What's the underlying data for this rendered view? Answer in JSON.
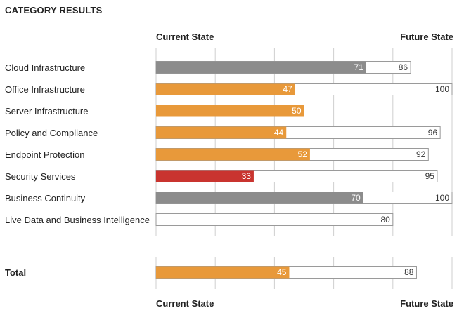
{
  "title": "CATEGORY RESULTS",
  "header": {
    "current": "Current State",
    "future": "Future State"
  },
  "footer": {
    "current": "Current State",
    "future": "Future State"
  },
  "chart_data": {
    "type": "bar",
    "xlim": [
      0,
      100
    ],
    "categories": [
      "Cloud Infrastructure",
      "Office Infrastructure",
      "Server Infrastructure",
      "Policy and Compliance",
      "Endpoint Protection",
      "Security Services",
      "Business Continuity",
      "Live Data and Business Intelligence"
    ],
    "series": [
      {
        "values": [
          71,
          47,
          50,
          44,
          52,
          33,
          70,
          null
        ],
        "colors": [
          "#8c8c8c",
          "#e8993a",
          "#e8993a",
          "#e8993a",
          "#e8993a",
          "#c9342f",
          "#8c8c8c",
          null
        ]
      },
      {
        "values": [
          86,
          100,
          null,
          96,
          92,
          95,
          100,
          80
        ]
      }
    ],
    "total": {
      "label": "Total",
      "current": 45,
      "future": 88,
      "color": "#e8993a"
    },
    "grid": true
  }
}
